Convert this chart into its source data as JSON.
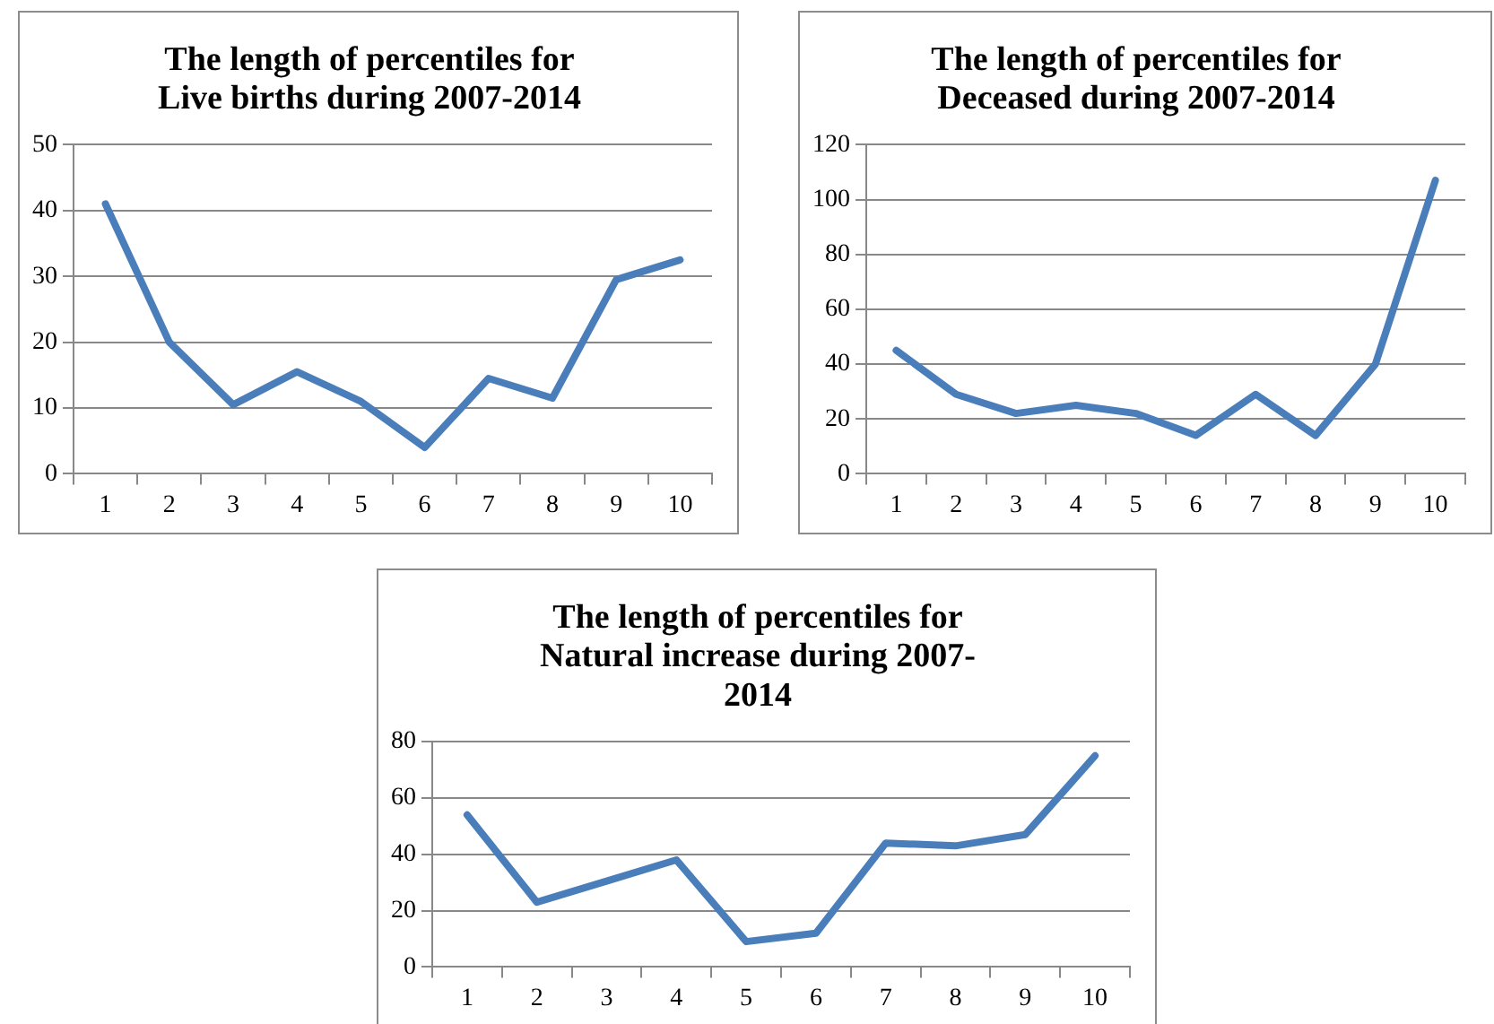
{
  "chart_data": [
    {
      "type": "line",
      "title": "The length of percentiles for\nLive births during 2007-2014",
      "categories": [
        "1",
        "2",
        "3",
        "4",
        "5",
        "6",
        "7",
        "8",
        "9",
        "10"
      ],
      "series": [
        {
          "color": "#4a7ebb",
          "values": [
            41,
            20,
            10.5,
            15.5,
            11,
            4,
            14.5,
            11.5,
            29.5,
            32.5
          ]
        }
      ],
      "ylim": [
        0,
        50
      ],
      "yticks": [
        0,
        10,
        20,
        30,
        40,
        50
      ],
      "grid": "y",
      "legend": false,
      "marker": "none"
    },
    {
      "type": "line",
      "title": "The length of percentiles for\nDeceased during 2007-2014",
      "categories": [
        "1",
        "2",
        "3",
        "4",
        "5",
        "6",
        "7",
        "8",
        "9",
        "10"
      ],
      "series": [
        {
          "color": "#4a7ebb",
          "values": [
            45,
            29,
            22,
            25,
            22,
            14,
            29,
            14,
            40,
            107
          ]
        }
      ],
      "ylim": [
        0,
        120
      ],
      "yticks": [
        0,
        20,
        40,
        60,
        80,
        100,
        120
      ],
      "grid": "y",
      "legend": false,
      "marker": "none"
    },
    {
      "type": "line",
      "title": "The length of percentiles for\nNatural increase during 2007-\n2014",
      "categories": [
        "1",
        "2",
        "3",
        "4",
        "5",
        "6",
        "7",
        "8",
        "9",
        "10"
      ],
      "series": [
        {
          "color": "#4a7ebb",
          "values": [
            54,
            23,
            30.5,
            38,
            9,
            12,
            44,
            43,
            47,
            75
          ]
        }
      ],
      "ylim": [
        0,
        80
      ],
      "yticks": [
        0,
        20,
        40,
        60,
        80
      ],
      "grid": "y",
      "legend": false,
      "marker": "none"
    }
  ]
}
